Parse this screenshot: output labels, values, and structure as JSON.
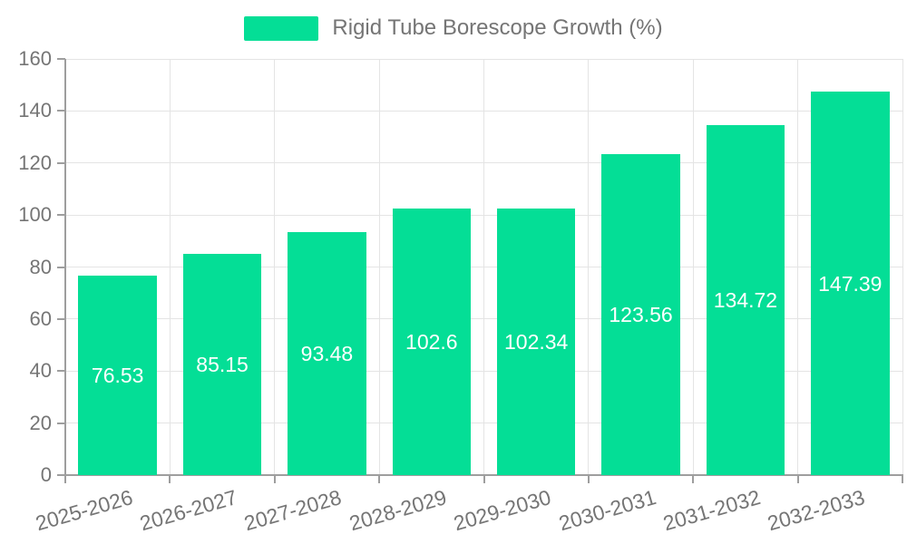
{
  "legend": {
    "label": "Rigid Tube Borescope Growth (%)"
  },
  "colors": {
    "bar": "#04DE96",
    "axis": "#9e9e9e",
    "grid": "#e4e4e4",
    "tick_label": "#757575",
    "legend_text": "#757575",
    "value_label": "#ffffff",
    "background": "#ffffff"
  },
  "chart_data": {
    "type": "bar",
    "title": "",
    "categories": [
      "2025-2026",
      "2026-2027",
      "2027-2028",
      "2028-2029",
      "2029-2030",
      "2030-2031",
      "2031-2032",
      "2032-2033"
    ],
    "series": [
      {
        "name": "Rigid Tube Borescope Growth (%)",
        "values": [
          76.53,
          85.15,
          93.48,
          102.6,
          102.34,
          123.56,
          134.72,
          147.39
        ]
      }
    ],
    "value_labels": [
      "76.53",
      "85.15",
      "93.48",
      "102.6",
      "102.34",
      "123.56",
      "134.72",
      "147.39"
    ],
    "xlabel": "",
    "ylabel": "",
    "ylim": [
      0,
      160
    ],
    "ytick_step": 20,
    "yticks": [
      0,
      20,
      40,
      60,
      80,
      100,
      120,
      140,
      160
    ],
    "grid": true,
    "legend_position": "top",
    "bar_width_fraction": 0.75,
    "x_label_rotation_deg": -16
  }
}
